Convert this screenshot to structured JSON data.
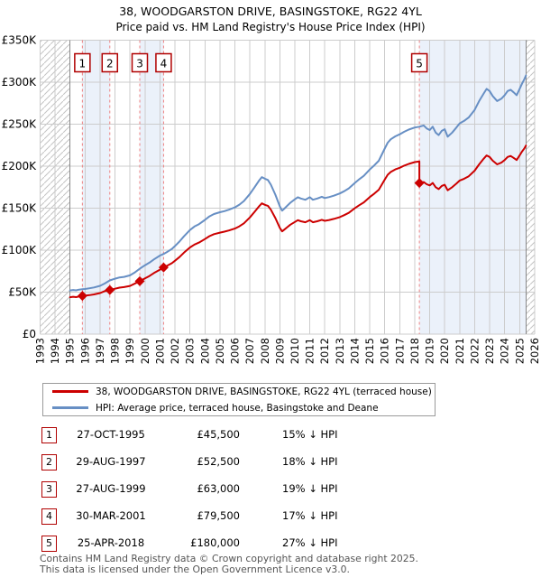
{
  "title": {
    "line1": "38, WOODGARSTON DRIVE, BASINGSTOKE, RG22 4YL",
    "line2": "Price paid vs. HM Land Registry's House Price Index (HPI)"
  },
  "legend": {
    "series1": "38, WOODGARSTON DRIVE, BASINGSTOKE, RG22 4YL (terraced house)",
    "series2": "HPI: Average price, terraced house, Basingstoke and Deane"
  },
  "footer": {
    "line1": "Contains HM Land Registry data © Crown copyright and database right 2025.",
    "line2": "This data is licensed under the Open Government Licence v3.0."
  },
  "colors": {
    "price_line": "#cc0000",
    "hpi_line": "#678fc4",
    "sale_dash": "#ee8282",
    "marker_box_border": "#b00000",
    "ownership_band": "#ebf1fa",
    "grid": "#cccccc",
    "hatch": "#c4c4c4",
    "data_edge": "#888888",
    "footer_text": "#555555"
  },
  "table": {
    "rows": [
      {
        "num": "1",
        "date": "27-OCT-1995",
        "price": "£45,500",
        "delta": "15% ↓ HPI"
      },
      {
        "num": "2",
        "date": "29-AUG-1997",
        "price": "£52,500",
        "delta": "18% ↓ HPI"
      },
      {
        "num": "3",
        "date": "27-AUG-1999",
        "price": "£63,000",
        "delta": "19% ↓ HPI"
      },
      {
        "num": "4",
        "date": "30-MAR-2001",
        "price": "£79,500",
        "delta": "17% ↓ HPI"
      },
      {
        "num": "5",
        "date": "25-APR-2018",
        "price": "£180,000",
        "delta": "27% ↓ HPI"
      }
    ]
  },
  "chart_data": {
    "type": "line",
    "title": "38, WOODGARSTON DRIVE, BASINGSTOKE, RG22 4YL — Price paid vs. HPI",
    "x_range": [
      1993,
      2026
    ],
    "y_range": [
      0,
      350000
    ],
    "grid": true,
    "x_ticks": [
      "1993",
      "1994",
      "1995",
      "1996",
      "1997",
      "1998",
      "1999",
      "2000",
      "2001",
      "2002",
      "2003",
      "2004",
      "2005",
      "2006",
      "2007",
      "2008",
      "2009",
      "2010",
      "2011",
      "2012",
      "2013",
      "2014",
      "2015",
      "2016",
      "2017",
      "2018",
      "2019",
      "2020",
      "2021",
      "2022",
      "2023",
      "2024",
      "2025",
      "2026"
    ],
    "y_ticks": [
      [
        0,
        "£0"
      ],
      [
        50000,
        "£50K"
      ],
      [
        100000,
        "£100K"
      ],
      [
        150000,
        "£150K"
      ],
      [
        200000,
        "£200K"
      ],
      [
        250000,
        "£250K"
      ],
      [
        300000,
        "£300K"
      ],
      [
        350000,
        "£350K"
      ]
    ],
    "bands": [
      [
        1995.82,
        1997.65
      ],
      [
        1999.65,
        2001.24
      ],
      [
        2018.31,
        2025.42
      ]
    ],
    "hatch_regions": [
      [
        1993,
        1995.0
      ],
      [
        2025.42,
        2026
      ]
    ],
    "data_edges": [
      1995.0,
      2025.42
    ],
    "sales": [
      {
        "label": "1",
        "year": 1995.82,
        "price": 45500
      },
      {
        "label": "2",
        "year": 1997.65,
        "price": 52500
      },
      {
        "label": "3",
        "year": 1999.65,
        "price": 63000
      },
      {
        "label": "4",
        "year": 2001.24,
        "price": 79500
      },
      {
        "label": "5",
        "year": 2018.31,
        "price": 180000
      }
    ],
    "series": [
      {
        "name": "HPI: Average price, terraced house, Basingstoke and Deane",
        "color_key": "hpi_line",
        "points": [
          [
            1995.0,
            52000
          ],
          [
            1995.2,
            52600
          ],
          [
            1995.4,
            52200
          ],
          [
            1995.6,
            53000
          ],
          [
            1995.82,
            53500
          ],
          [
            1996.0,
            53800
          ],
          [
            1996.3,
            54600
          ],
          [
            1996.6,
            55600
          ],
          [
            1997.0,
            57500
          ],
          [
            1997.3,
            60200
          ],
          [
            1997.65,
            64000
          ],
          [
            1998.0,
            66000
          ],
          [
            1998.3,
            67500
          ],
          [
            1998.6,
            68200
          ],
          [
            1999.0,
            70000
          ],
          [
            1999.3,
            73200
          ],
          [
            1999.65,
            78000
          ],
          [
            2000.0,
            82000
          ],
          [
            2000.3,
            85200
          ],
          [
            2000.6,
            89000
          ],
          [
            2001.0,
            93500
          ],
          [
            2001.24,
            95500
          ],
          [
            2001.5,
            98200
          ],
          [
            2001.8,
            101500
          ],
          [
            2002.0,
            105000
          ],
          [
            2002.3,
            110200
          ],
          [
            2002.6,
            116500
          ],
          [
            2003.0,
            124000
          ],
          [
            2003.3,
            128200
          ],
          [
            2003.6,
            131000
          ],
          [
            2004.0,
            136000
          ],
          [
            2004.3,
            140200
          ],
          [
            2004.6,
            143000
          ],
          [
            2005.0,
            145200
          ],
          [
            2005.3,
            146500
          ],
          [
            2005.6,
            148200
          ],
          [
            2006.0,
            151000
          ],
          [
            2006.3,
            154200
          ],
          [
            2006.6,
            158500
          ],
          [
            2007.0,
            167000
          ],
          [
            2007.3,
            174500
          ],
          [
            2007.6,
            182500
          ],
          [
            2007.8,
            187000
          ],
          [
            2008.0,
            185000
          ],
          [
            2008.2,
            183500
          ],
          [
            2008.4,
            178000
          ],
          [
            2008.7,
            166000
          ],
          [
            2009.0,
            152000
          ],
          [
            2009.15,
            147000
          ],
          [
            2009.3,
            149500
          ],
          [
            2009.5,
            153000
          ],
          [
            2009.7,
            156500
          ],
          [
            2010.0,
            160500
          ],
          [
            2010.2,
            163000
          ],
          [
            2010.4,
            161500
          ],
          [
            2010.7,
            160000
          ],
          [
            2011.0,
            163000
          ],
          [
            2011.2,
            160000
          ],
          [
            2011.5,
            161500
          ],
          [
            2011.8,
            163500
          ],
          [
            2012.0,
            162000
          ],
          [
            2012.3,
            163200
          ],
          [
            2012.6,
            164800
          ],
          [
            2013.0,
            167500
          ],
          [
            2013.3,
            170200
          ],
          [
            2013.6,
            173500
          ],
          [
            2014.0,
            180000
          ],
          [
            2014.3,
            184500
          ],
          [
            2014.6,
            188500
          ],
          [
            2015.0,
            196000
          ],
          [
            2015.3,
            201000
          ],
          [
            2015.6,
            206500
          ],
          [
            2016.0,
            221000
          ],
          [
            2016.2,
            228000
          ],
          [
            2016.4,
            232000
          ],
          [
            2016.7,
            235500
          ],
          [
            2017.0,
            238000
          ],
          [
            2017.3,
            241000
          ],
          [
            2017.6,
            243500
          ],
          [
            2018.0,
            246000
          ],
          [
            2018.31,
            247000
          ],
          [
            2018.6,
            248500
          ],
          [
            2018.8,
            245000
          ],
          [
            2019.0,
            243000
          ],
          [
            2019.2,
            247000
          ],
          [
            2019.4,
            240000
          ],
          [
            2019.6,
            237000
          ],
          [
            2019.8,
            242000
          ],
          [
            2020.0,
            244000
          ],
          [
            2020.2,
            235000
          ],
          [
            2020.5,
            240000
          ],
          [
            2020.8,
            246500
          ],
          [
            2021.0,
            251000
          ],
          [
            2021.3,
            254000
          ],
          [
            2021.6,
            258000
          ],
          [
            2022.0,
            267000
          ],
          [
            2022.3,
            277500
          ],
          [
            2022.6,
            286500
          ],
          [
            2022.8,
            292000
          ],
          [
            2023.0,
            289500
          ],
          [
            2023.2,
            283500
          ],
          [
            2023.5,
            277500
          ],
          [
            2023.8,
            280500
          ],
          [
            2024.0,
            284500
          ],
          [
            2024.2,
            289500
          ],
          [
            2024.4,
            291000
          ],
          [
            2024.6,
            288000
          ],
          [
            2024.8,
            284500
          ],
          [
            2025.0,
            292000
          ],
          [
            2025.15,
            298000
          ],
          [
            2025.3,
            303000
          ],
          [
            2025.42,
            308000
          ]
        ]
      },
      {
        "name": "38, WOODGARSTON DRIVE, BASINGSTOKE, RG22 4YL (terraced house)",
        "color_key": "price_line",
        "points": [
          [
            1995.0,
            44000
          ],
          [
            1995.2,
            44500
          ],
          [
            1995.4,
            44100
          ],
          [
            1995.6,
            44800
          ],
          [
            1995.82,
            45500
          ],
          [
            1996.0,
            45800
          ],
          [
            1996.3,
            46400
          ],
          [
            1996.6,
            47300
          ],
          [
            1997.0,
            48900
          ],
          [
            1997.3,
            51200
          ],
          [
            1997.65,
            52500
          ],
          [
            1998.0,
            54100
          ],
          [
            1998.3,
            55400
          ],
          [
            1998.6,
            56000
          ],
          [
            1999.0,
            57400
          ],
          [
            1999.3,
            60000
          ],
          [
            1999.65,
            63000
          ],
          [
            2000.0,
            66500
          ],
          [
            2000.3,
            69200
          ],
          [
            2000.6,
            72800
          ],
          [
            2001.0,
            76800
          ],
          [
            2001.24,
            79500
          ],
          [
            2001.5,
            81700
          ],
          [
            2001.8,
            84500
          ],
          [
            2002.0,
            87400
          ],
          [
            2002.3,
            91700
          ],
          [
            2002.6,
            97000
          ],
          [
            2003.0,
            103200
          ],
          [
            2003.3,
            106700
          ],
          [
            2003.6,
            109000
          ],
          [
            2004.0,
            113200
          ],
          [
            2004.3,
            116700
          ],
          [
            2004.6,
            119000
          ],
          [
            2005.0,
            120900
          ],
          [
            2005.3,
            122000
          ],
          [
            2005.6,
            123400
          ],
          [
            2006.0,
            125700
          ],
          [
            2006.3,
            128400
          ],
          [
            2006.6,
            131900
          ],
          [
            2007.0,
            139000
          ],
          [
            2007.3,
            145300
          ],
          [
            2007.6,
            151900
          ],
          [
            2007.8,
            155700
          ],
          [
            2008.0,
            154000
          ],
          [
            2008.2,
            152800
          ],
          [
            2008.4,
            148200
          ],
          [
            2008.7,
            138200
          ],
          [
            2009.0,
            126500
          ],
          [
            2009.15,
            122400
          ],
          [
            2009.3,
            124500
          ],
          [
            2009.5,
            127400
          ],
          [
            2009.7,
            130300
          ],
          [
            2010.0,
            133600
          ],
          [
            2010.2,
            135700
          ],
          [
            2010.4,
            134400
          ],
          [
            2010.7,
            133200
          ],
          [
            2011.0,
            135700
          ],
          [
            2011.2,
            133200
          ],
          [
            2011.5,
            134400
          ],
          [
            2011.8,
            136100
          ],
          [
            2012.0,
            134900
          ],
          [
            2012.3,
            135900
          ],
          [
            2012.6,
            137200
          ],
          [
            2013.0,
            139400
          ],
          [
            2013.3,
            141700
          ],
          [
            2013.6,
            144400
          ],
          [
            2014.0,
            149900
          ],
          [
            2014.3,
            153600
          ],
          [
            2014.6,
            156900
          ],
          [
            2015.0,
            163200
          ],
          [
            2015.3,
            167300
          ],
          [
            2015.6,
            171900
          ],
          [
            2016.0,
            184000
          ],
          [
            2016.2,
            189800
          ],
          [
            2016.4,
            193100
          ],
          [
            2016.7,
            196100
          ],
          [
            2017.0,
            198100
          ],
          [
            2017.3,
            200600
          ],
          [
            2017.6,
            202700
          ],
          [
            2018.0,
            204800
          ],
          [
            2018.31,
            205600
          ],
          [
            2018.31,
            180000
          ],
          [
            2018.6,
            181100
          ],
          [
            2018.8,
            178500
          ],
          [
            2019.0,
            177100
          ],
          [
            2019.2,
            180000
          ],
          [
            2019.4,
            174900
          ],
          [
            2019.6,
            172700
          ],
          [
            2019.8,
            176400
          ],
          [
            2020.0,
            177800
          ],
          [
            2020.2,
            171300
          ],
          [
            2020.5,
            174900
          ],
          [
            2020.8,
            179600
          ],
          [
            2021.0,
            182900
          ],
          [
            2021.3,
            185100
          ],
          [
            2021.6,
            188000
          ],
          [
            2022.0,
            194600
          ],
          [
            2022.3,
            202200
          ],
          [
            2022.6,
            208800
          ],
          [
            2022.8,
            212800
          ],
          [
            2023.0,
            211000
          ],
          [
            2023.2,
            206600
          ],
          [
            2023.5,
            202200
          ],
          [
            2023.8,
            204400
          ],
          [
            2024.0,
            207300
          ],
          [
            2024.2,
            211000
          ],
          [
            2024.4,
            212100
          ],
          [
            2024.6,
            209900
          ],
          [
            2024.8,
            207300
          ],
          [
            2025.0,
            212800
          ],
          [
            2025.15,
            217200
          ],
          [
            2025.3,
            220800
          ],
          [
            2025.42,
            224500
          ]
        ]
      }
    ]
  }
}
